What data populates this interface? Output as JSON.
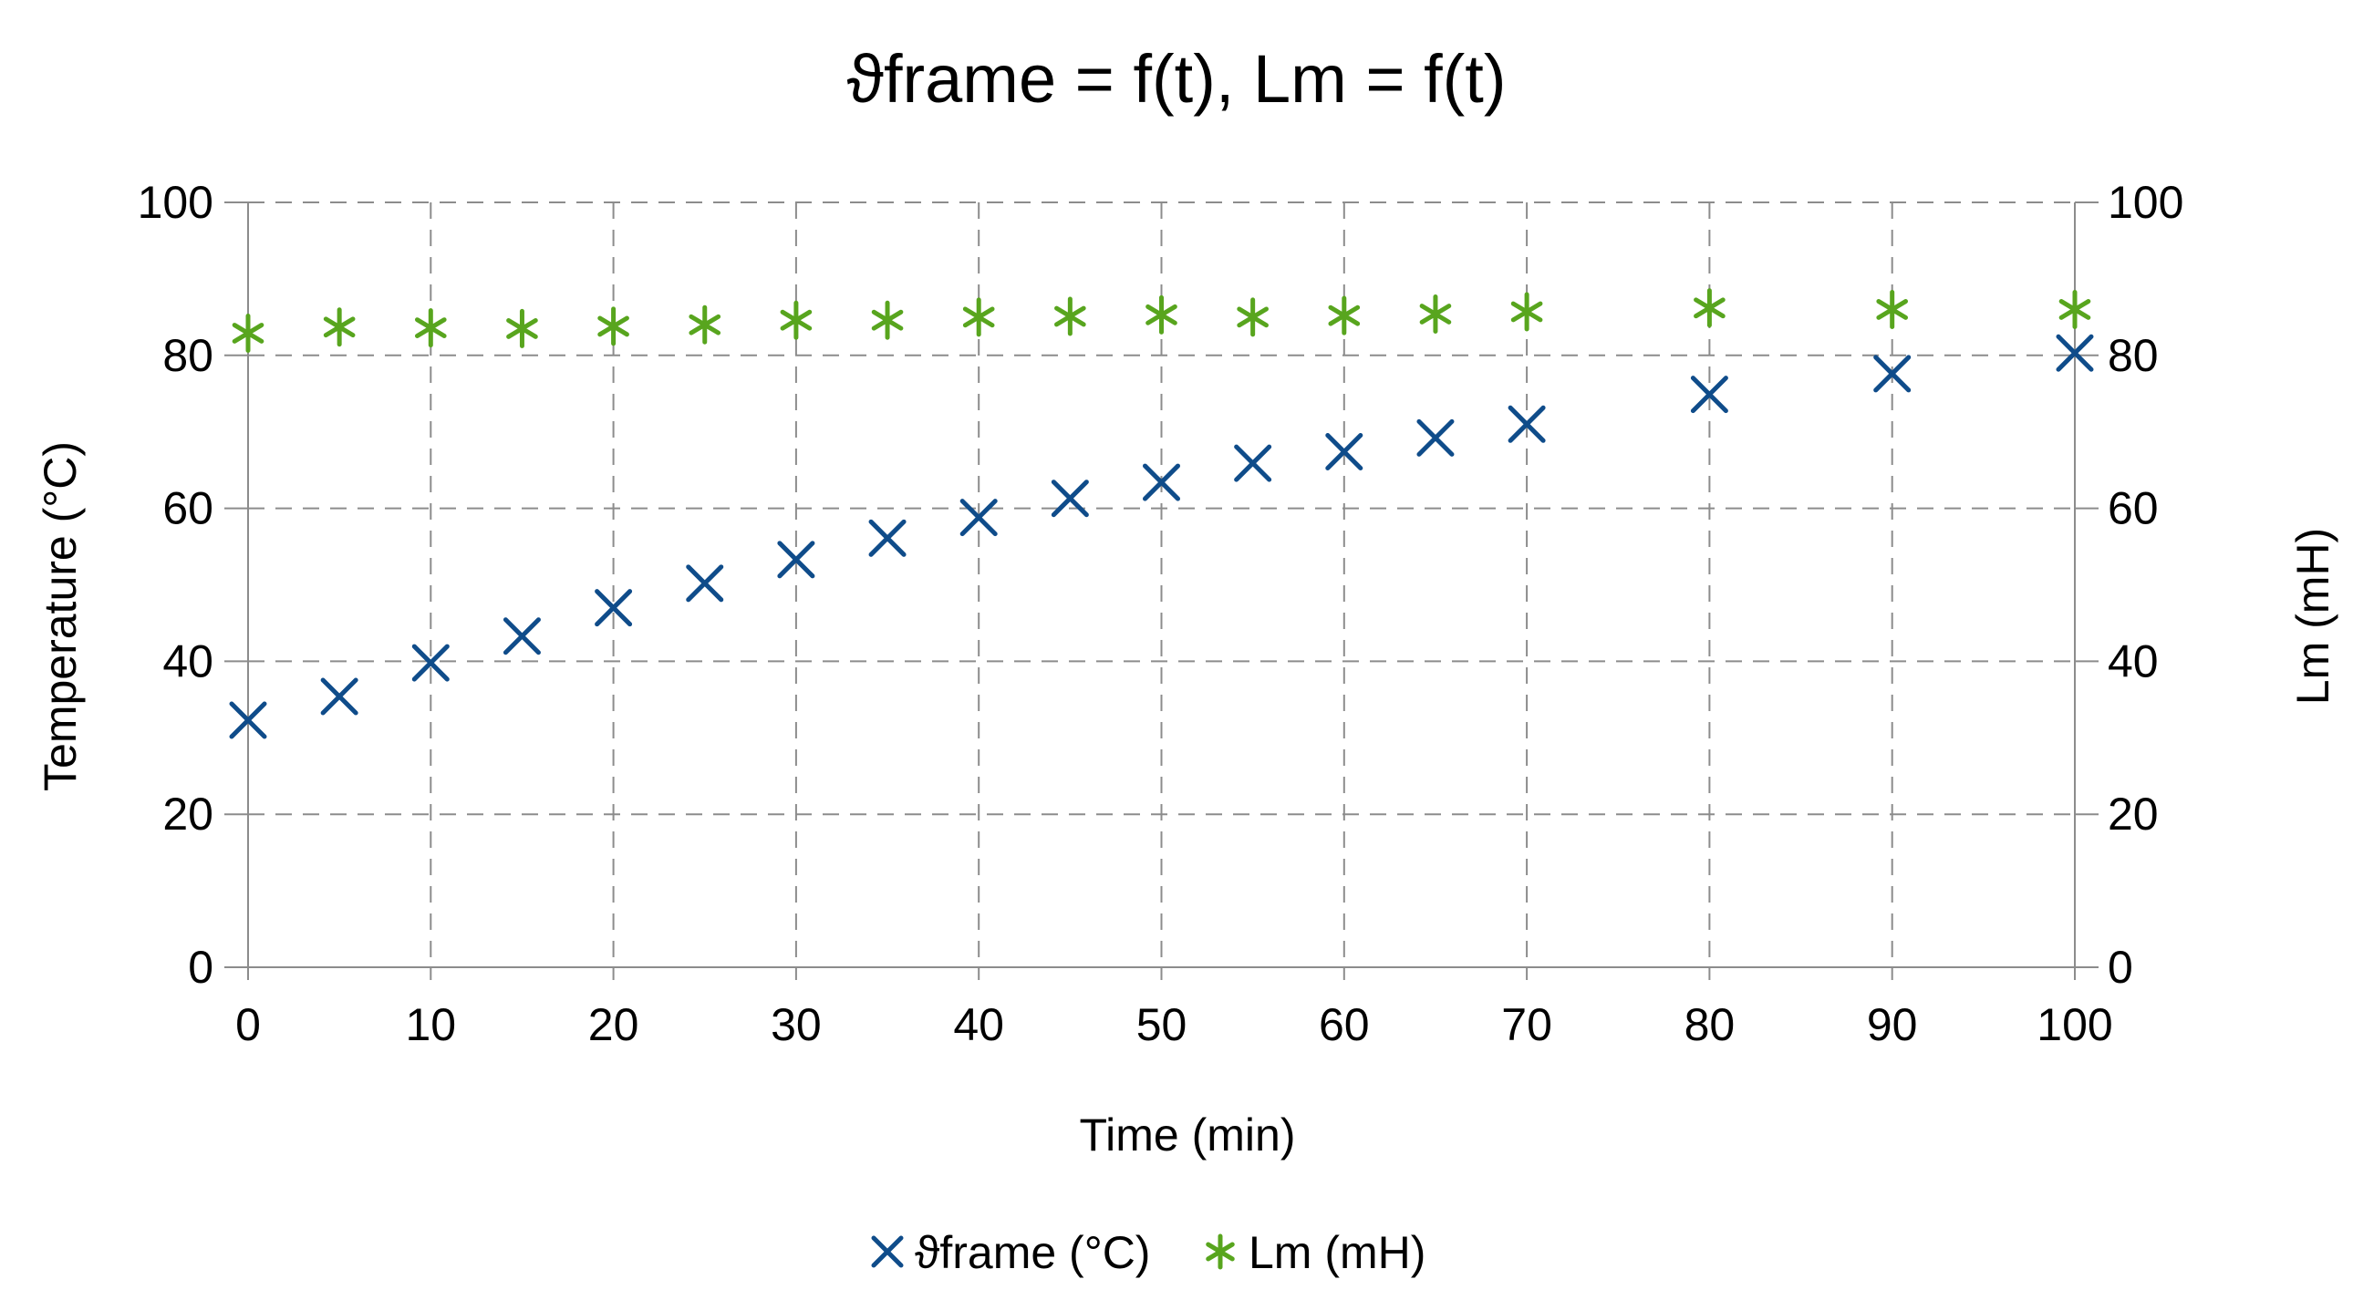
{
  "chart_data": {
    "type": "scatter",
    "title": "ϑframe = f(t), Lm = f(t)",
    "xlabel": "Time (min)",
    "ylabel_left": "Temperature (°C)",
    "ylabel_right": "Lm (mH)",
    "xlim": [
      0,
      100
    ],
    "ylim_left": [
      0,
      100
    ],
    "ylim_right": [
      0,
      100
    ],
    "x_ticks": [
      0,
      10,
      20,
      30,
      40,
      50,
      60,
      70,
      80,
      90,
      100
    ],
    "y_ticks": [
      0,
      20,
      40,
      60,
      80,
      100
    ],
    "grid": true,
    "legend_position": "bottom",
    "series": [
      {
        "name": "ϑframe (°C)",
        "axis": "left",
        "marker": "x",
        "color": "#0f4c8a",
        "x": [
          0,
          5,
          10,
          15,
          20,
          25,
          30,
          35,
          40,
          45,
          50,
          55,
          60,
          65,
          70,
          80,
          90,
          100
        ],
        "y": [
          32.3,
          35.4,
          39.8,
          43.3,
          47.0,
          50.2,
          53.3,
          56.1,
          58.8,
          61.3,
          63.4,
          65.9,
          67.4,
          69.2,
          71.0,
          74.9,
          77.6,
          80.3
        ]
      },
      {
        "name": "Lm (mH)",
        "axis": "right",
        "marker": "asterisk",
        "color": "#58a51e",
        "x": [
          0,
          5,
          10,
          15,
          20,
          25,
          30,
          35,
          40,
          45,
          50,
          55,
          60,
          65,
          70,
          80,
          90,
          100
        ],
        "y": [
          82.9,
          83.7,
          83.6,
          83.5,
          83.8,
          84.0,
          84.6,
          84.6,
          85.0,
          85.1,
          85.3,
          85.0,
          85.2,
          85.4,
          85.7,
          86.2,
          86.0,
          86.0
        ]
      }
    ]
  }
}
